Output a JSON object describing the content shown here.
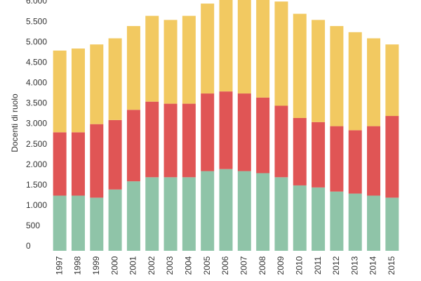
{
  "chart_data": {
    "type": "stacked_bar",
    "y_label": "Docenti di ruolo",
    "categories": [
      "1997",
      "1998",
      "1999",
      "2000",
      "2001",
      "2002",
      "2003",
      "2004",
      "2005",
      "2006",
      "2007",
      "2008",
      "2009",
      "2010",
      "2011",
      "2012",
      "2013",
      "2014",
      "2015"
    ],
    "series": [
      {
        "color": "#8fc4a8",
        "values": [
          1350,
          1350,
          1300,
          1500,
          1700,
          1800,
          1800,
          1800,
          1950,
          2000,
          1950,
          1900,
          1800,
          1600,
          1550,
          1450,
          1400,
          1350,
          1300
        ]
      },
      {
        "color": "#e05555",
        "values": [
          1550,
          1550,
          1800,
          1700,
          1750,
          1850,
          1800,
          1800,
          1900,
          1900,
          1900,
          1850,
          1750,
          1650,
          1600,
          1600,
          1550,
          1700,
          2000
        ]
      },
      {
        "color": "#f2c961",
        "values": [
          2000,
          2050,
          1950,
          2000,
          2050,
          2100,
          2050,
          2150,
          2200,
          2350,
          2400,
          2450,
          2550,
          2550,
          2500,
          2450,
          2400,
          2150,
          1750
        ]
      }
    ],
    "ylim": [
      0,
      6000
    ],
    "yticks": [
      0,
      500,
      {
        "value": 1000,
        "label": "1.000"
      },
      {
        "value": 1500,
        "label": "1.500"
      },
      {
        "value": 2000,
        "label": "2.000"
      },
      {
        "value": 2500,
        "label": "2.500"
      },
      {
        "value": 3000,
        "label": "3.000"
      },
      {
        "value": 3500,
        "label": "3.500"
      },
      {
        "value": 4000,
        "label": "4.000"
      },
      {
        "value": 4500,
        "label": "4.500"
      },
      {
        "value": 5000,
        "label": "5.000"
      },
      {
        "value": 5500,
        "label": "5.500"
      },
      {
        "value": 6000,
        "label": "6.000"
      }
    ],
    "grid": false
  }
}
